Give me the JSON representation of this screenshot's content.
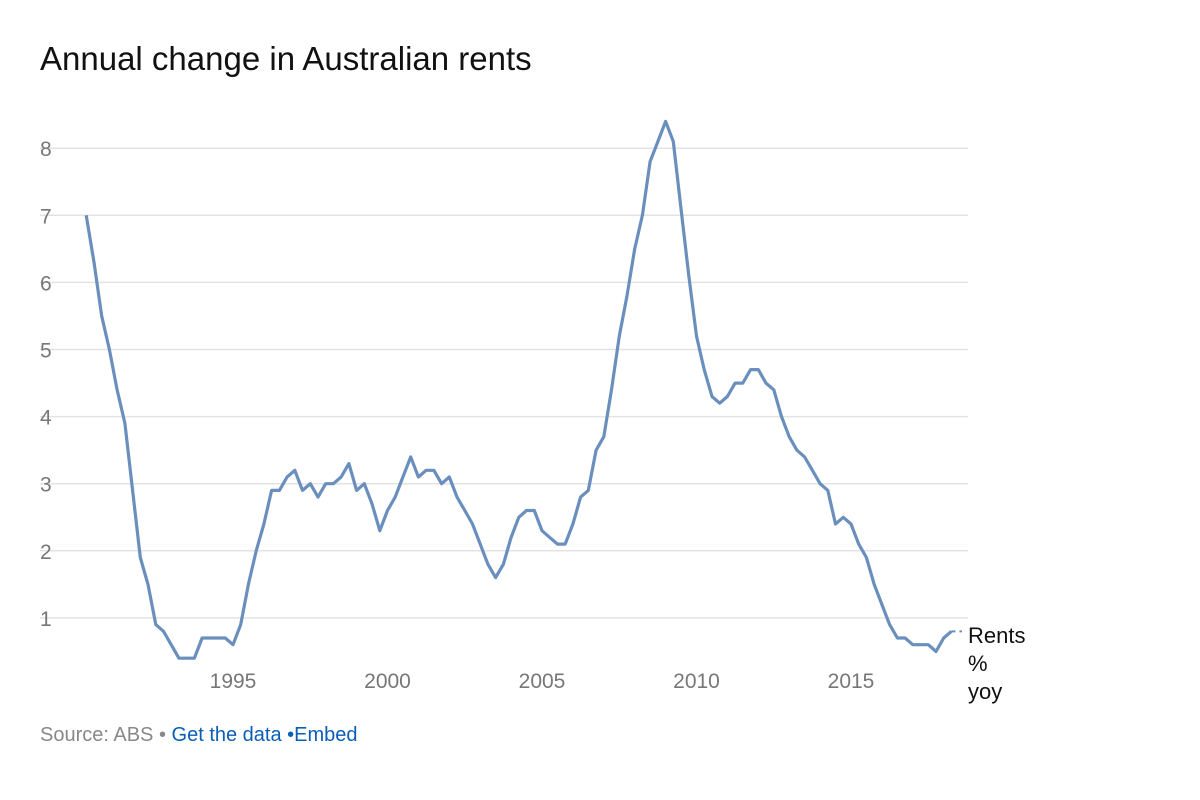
{
  "title": "Annual change in Australian rents",
  "footer": {
    "source": "Source: ABS",
    "sep1": " • ",
    "get_data": "Get the data",
    "sep2": " •",
    "embed": "Embed"
  },
  "colors": {
    "line": "#6a8fbd",
    "grid": "#e3e3e3",
    "link": "#0a5eb5"
  },
  "chart_data": {
    "type": "line",
    "title": "Annual change in Australian rents",
    "xlabel": "",
    "ylabel": "",
    "xlim": [
      1990.25,
      2018.25
    ],
    "ylim": [
      0,
      8.5
    ],
    "x_ticks": [
      1995,
      2000,
      2005,
      2010,
      2015
    ],
    "y_ticks": [
      1,
      2,
      3,
      4,
      5,
      6,
      7,
      8
    ],
    "grid": "horizontal",
    "legend": "end-of-line label",
    "series": [
      {
        "name": "Rents % yoy",
        "label_lines": [
          "Rents",
          "%",
          "yoy"
        ],
        "x": [
          1990.25,
          1990.5,
          1990.75,
          1991,
          1991.25,
          1991.5,
          1991.75,
          1992,
          1992.25,
          1992.5,
          1992.75,
          1993,
          1993.25,
          1993.5,
          1993.75,
          1994,
          1994.25,
          1994.5,
          1994.75,
          1995,
          1995.25,
          1995.5,
          1995.75,
          1996,
          1996.25,
          1996.5,
          1996.75,
          1997,
          1997.25,
          1997.5,
          1997.75,
          1998,
          1998.25,
          1998.5,
          1998.75,
          1999,
          1999.25,
          1999.5,
          1999.75,
          2000,
          2000.25,
          2000.5,
          2000.75,
          2001,
          2001.25,
          2001.5,
          2001.75,
          2002,
          2002.25,
          2002.5,
          2002.75,
          2003,
          2003.25,
          2003.5,
          2003.75,
          2004,
          2004.25,
          2004.5,
          2004.75,
          2005,
          2005.25,
          2005.5,
          2005.75,
          2006,
          2006.25,
          2006.5,
          2006.75,
          2007,
          2007.25,
          2007.5,
          2007.75,
          2008,
          2008.25,
          2008.5,
          2008.75,
          2009,
          2009.25,
          2009.5,
          2009.75,
          2010,
          2010.25,
          2010.5,
          2010.75,
          2011,
          2011.25,
          2011.5,
          2011.75,
          2012,
          2012.25,
          2012.5,
          2012.75,
          2013,
          2013.25,
          2013.5,
          2013.75,
          2014,
          2014.25,
          2014.5,
          2014.75,
          2015,
          2015.25,
          2015.5,
          2015.75,
          2016,
          2016.25,
          2016.5,
          2016.75,
          2017,
          2017.25,
          2017.5,
          2017.75,
          2018,
          2018.25
        ],
        "values": [
          7.0,
          6.3,
          5.5,
          5.0,
          4.4,
          3.9,
          2.9,
          1.9,
          1.5,
          0.9,
          0.8,
          0.6,
          0.4,
          0.4,
          0.4,
          0.7,
          0.7,
          0.7,
          0.7,
          0.6,
          0.9,
          1.5,
          2.0,
          2.4,
          2.9,
          2.9,
          3.1,
          3.2,
          2.9,
          3.0,
          2.8,
          3.0,
          3.0,
          3.1,
          3.3,
          2.9,
          3.0,
          2.7,
          2.3,
          2.6,
          2.8,
          3.1,
          3.4,
          3.1,
          3.2,
          3.2,
          3.0,
          3.1,
          2.8,
          2.6,
          2.4,
          2.1,
          1.8,
          1.6,
          1.8,
          2.2,
          2.5,
          2.6,
          2.6,
          2.3,
          2.2,
          2.1,
          2.1,
          2.4,
          2.8,
          2.9,
          3.5,
          3.7,
          4.4,
          5.2,
          5.8,
          6.5,
          7.0,
          7.8,
          8.1,
          8.4,
          8.1,
          7.1,
          6.1,
          5.2,
          4.7,
          4.3,
          4.2,
          4.3,
          4.5,
          4.5,
          4.7,
          4.7,
          4.5,
          4.4,
          4.0,
          3.7,
          3.5,
          3.4,
          3.2,
          3.0,
          2.9,
          2.4,
          2.5,
          2.4,
          2.1,
          1.9,
          1.5,
          1.2,
          0.9,
          0.7,
          0.7,
          0.6,
          0.6,
          0.6,
          0.5,
          0.7,
          0.8
        ]
      }
    ]
  }
}
